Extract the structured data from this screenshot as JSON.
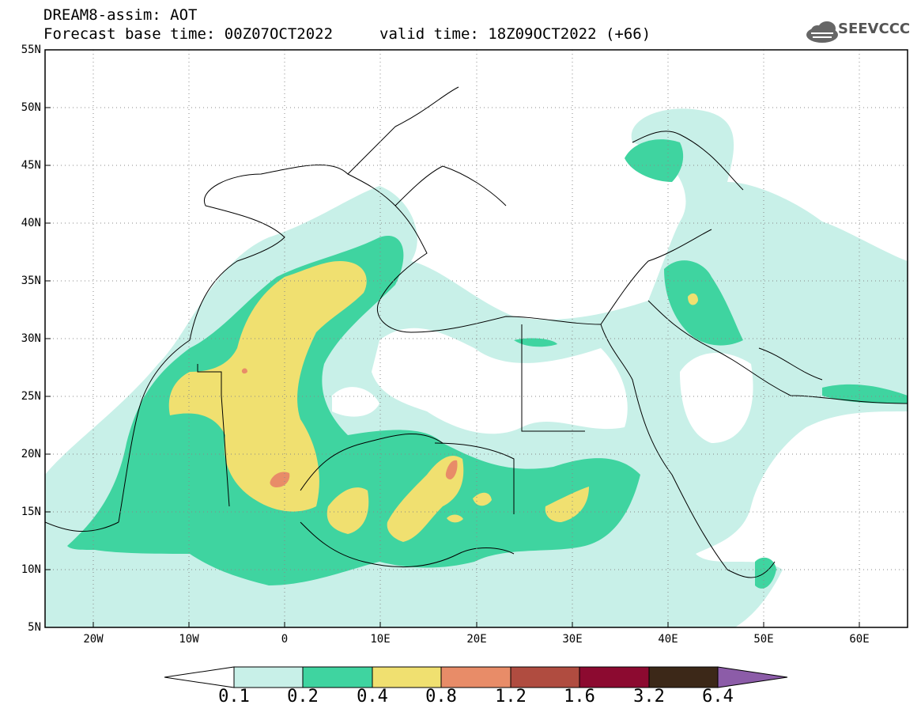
{
  "header": {
    "title_line1": "DREAM8-assim: AOT",
    "title_line2": "Forecast base time: 00Z07OCT2022",
    "valid_time": "valid time: 18Z09OCT2022 (+66)",
    "logo_text": "SEEVCCC"
  },
  "map": {
    "lat_labels": [
      "55N",
      "50N",
      "45N",
      "40N",
      "35N",
      "30N",
      "25N",
      "20N",
      "15N",
      "10N",
      "5N"
    ],
    "lon_labels": [
      "20W",
      "10W",
      "0",
      "10E",
      "20E",
      "30E",
      "40E",
      "50E",
      "60E"
    ],
    "lat_range": [
      5,
      55
    ],
    "lon_range": [
      -25,
      65
    ],
    "grid": "dotted"
  },
  "colorbar": {
    "labels": [
      "0.1",
      "0.2",
      "0.4",
      "0.8",
      "1.2",
      "1.6",
      "3.2",
      "6.4"
    ],
    "colors": [
      "#c8f0e8",
      "#3fd4a0",
      "#f0e070",
      "#e88c68",
      "#b04c40",
      "#8c0a30",
      "#3c2818",
      "#8c5ca8"
    ],
    "under_color": "#ffffff"
  }
}
